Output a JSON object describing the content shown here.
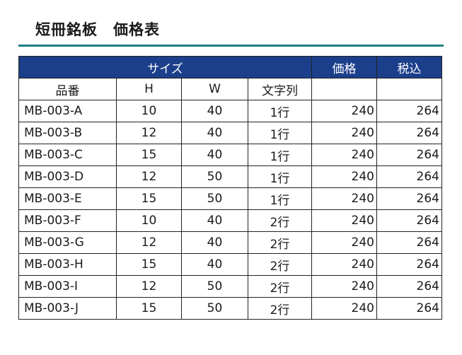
{
  "title": "短冊銘板　価格表",
  "header": {
    "size_label": "サイズ",
    "price_label": "価格",
    "tax_label": "税込"
  },
  "subheader": {
    "part_no": "品番",
    "h": "H",
    "w": "W",
    "lines": "文字列",
    "price": "",
    "tax": ""
  },
  "rows": [
    {
      "part": "MB-003-A",
      "h": "10",
      "w": "40",
      "lines": "1行",
      "price": "240",
      "tax": "264"
    },
    {
      "part": "MB-003-B",
      "h": "12",
      "w": "40",
      "lines": "1行",
      "price": "240",
      "tax": "264"
    },
    {
      "part": "MB-003-C",
      "h": "15",
      "w": "40",
      "lines": "1行",
      "price": "240",
      "tax": "264"
    },
    {
      "part": "MB-003-D",
      "h": "12",
      "w": "50",
      "lines": "1行",
      "price": "240",
      "tax": "264"
    },
    {
      "part": "MB-003-E",
      "h": "15",
      "w": "50",
      "lines": "1行",
      "price": "240",
      "tax": "264"
    },
    {
      "part": "MB-003-F",
      "h": "10",
      "w": "40",
      "lines": "2行",
      "price": "240",
      "tax": "264"
    },
    {
      "part": "MB-003-G",
      "h": "12",
      "w": "40",
      "lines": "2行",
      "price": "240",
      "tax": "264"
    },
    {
      "part": "MB-003-H",
      "h": "15",
      "w": "40",
      "lines": "2行",
      "price": "240",
      "tax": "264"
    },
    {
      "part": "MB-003-I",
      "h": "12",
      "w": "50",
      "lines": "2行",
      "price": "240",
      "tax": "264"
    },
    {
      "part": "MB-003-J",
      "h": "15",
      "w": "50",
      "lines": "2行",
      "price": "240",
      "tax": "264"
    }
  ],
  "colors": {
    "header_bg": "#1b3f8b",
    "header_text": "#ffffff",
    "rule": "#1f7f86"
  }
}
